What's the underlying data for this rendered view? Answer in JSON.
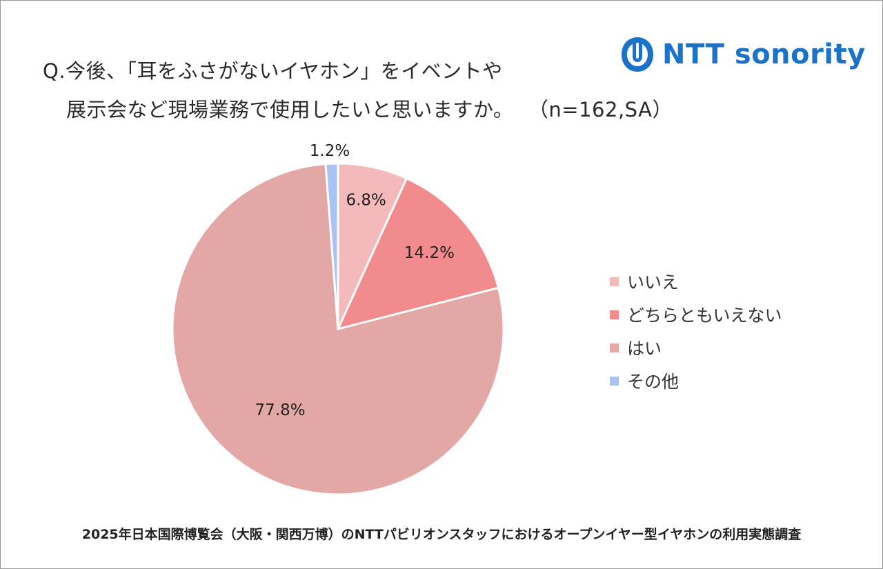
{
  "question": {
    "line1": "Q.今後、「耳をふさがないイヤホン」をイベントや",
    "line2": "展示会など現場業務で使用したいと思いますか。",
    "sample": "（n=162,SA）"
  },
  "logo": {
    "icon": "ntt-logo-icon",
    "text": "NTT sonority",
    "color": "#1a73c8"
  },
  "chart_data": {
    "type": "pie",
    "start": "12 o'clock, clockwise",
    "slices": [
      {
        "label": "いいえ",
        "value": 6.8,
        "display": "6.8%",
        "color": "#f4b9ba"
      },
      {
        "label": "どちらともいえない",
        "value": 14.2,
        "display": "14.2%",
        "color": "#f18b8d"
      },
      {
        "label": "はい",
        "value": 77.8,
        "display": "77.8%",
        "color": "#e3a8a6"
      },
      {
        "label": "その他",
        "value": 1.2,
        "display": "1.2%",
        "color": "#a9c4f2"
      }
    ],
    "legend_position": "right"
  },
  "footer": "2025年日本国際博覧会（大阪・関西万博）のNTTパビリオンスタッフにおけるオープンイヤー型イヤホンの利用実態調査"
}
